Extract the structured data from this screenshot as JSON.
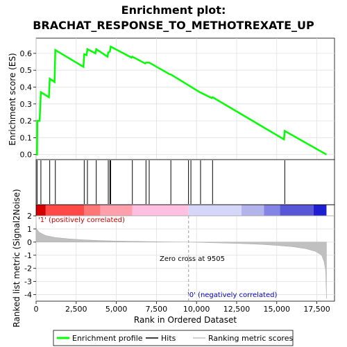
{
  "chart_data": {
    "type": "line",
    "title_line1": "Enrichment plot:",
    "title_line2": "BRACHAT_RESPONSE_TO_METHOTREXATE_UP",
    "top_panel": {
      "ylabel": "Enrichment score (ES)",
      "ylim": [
        -0.03,
        0.69
      ],
      "yticks": [
        0.0,
        0.1,
        0.2,
        0.3,
        0.4,
        0.5,
        0.6
      ],
      "ytick_labels": [
        "0.0",
        "0.1",
        "0.2",
        "0.3",
        "0.4",
        "0.5",
        "0.6"
      ],
      "series_color": "#00ff00",
      "es_points": [
        [
          0,
          0
        ],
        [
          60,
          0
        ],
        [
          80,
          0.2
        ],
        [
          220,
          0.2
        ],
        [
          300,
          0.37
        ],
        [
          800,
          0.34
        ],
        [
          850,
          0.45
        ],
        [
          1150,
          0.43
        ],
        [
          1200,
          0.62
        ],
        [
          2950,
          0.52
        ],
        [
          3000,
          0.595
        ],
        [
          3150,
          0.59
        ],
        [
          3200,
          0.625
        ],
        [
          3700,
          0.6
        ],
        [
          3750,
          0.625
        ],
        [
          4450,
          0.58
        ],
        [
          4500,
          0.605
        ],
        [
          4600,
          0.61
        ],
        [
          4650,
          0.64
        ],
        [
          5950,
          0.575
        ],
        [
          6000,
          0.58
        ],
        [
          6800,
          0.54
        ],
        [
          6850,
          0.545
        ],
        [
          7050,
          0.545
        ],
        [
          8350,
          0.475
        ],
        [
          8400,
          0.475
        ],
        [
          10200,
          0.37
        ],
        [
          10950,
          0.335
        ],
        [
          11000,
          0.34
        ],
        [
          15450,
          0.09
        ],
        [
          15500,
          0.14
        ],
        [
          18100,
          0
        ]
      ]
    },
    "hits": {
      "positions": [
        60,
        300,
        850,
        1200,
        3000,
        3200,
        3750,
        4500,
        4600,
        4650,
        6000,
        6850,
        7050,
        8400,
        9500,
        9650,
        10250,
        11000,
        15500
      ]
    },
    "colorbar": {
      "segments": [
        {
          "start": 0,
          "end": 600,
          "color": "#d40000"
        },
        {
          "start": 600,
          "end": 3000,
          "color": "#ff4848"
        },
        {
          "start": 3000,
          "end": 4000,
          "color": "#ff7676"
        },
        {
          "start": 4000,
          "end": 6000,
          "color": "#ff9fac"
        },
        {
          "start": 6000,
          "end": 9500,
          "color": "#ffbfe0"
        },
        {
          "start": 9500,
          "end": 12800,
          "color": "#d6d6f8"
        },
        {
          "start": 12800,
          "end": 14200,
          "color": "#b4b4ec"
        },
        {
          "start": 14200,
          "end": 15200,
          "color": "#8484e4"
        },
        {
          "start": 15200,
          "end": 17300,
          "color": "#5858d6"
        },
        {
          "start": 17300,
          "end": 18100,
          "color": "#1e1ed0"
        }
      ]
    },
    "bottom_panel": {
      "ylabel": "Ranked list metric (Signal2Noise)",
      "ylim": [
        -4.5,
        2.0
      ],
      "yticks": [
        2,
        1,
        0,
        -1,
        -2,
        -3,
        -4
      ],
      "ytick_labels": [
        "2",
        "1",
        "0",
        "-1",
        "-2",
        "-3",
        "-4"
      ],
      "metric_points": [
        [
          0,
          1.5
        ],
        [
          30,
          1.0
        ],
        [
          200,
          0.75
        ],
        [
          600,
          0.5
        ],
        [
          1200,
          0.35
        ],
        [
          2000,
          0.25
        ],
        [
          3000,
          0.17
        ],
        [
          4000,
          0.12
        ],
        [
          5000,
          0.08
        ],
        [
          6500,
          0.05
        ],
        [
          8000,
          0.02
        ],
        [
          9505,
          0
        ],
        [
          11000,
          -0.05
        ],
        [
          12500,
          -0.1
        ],
        [
          14000,
          -0.17
        ],
        [
          15000,
          -0.25
        ],
        [
          16000,
          -0.35
        ],
        [
          16800,
          -0.5
        ],
        [
          17400,
          -0.7
        ],
        [
          17800,
          -1.0
        ],
        [
          17950,
          -1.5
        ],
        [
          18050,
          -2.2
        ],
        [
          18100,
          -4.3
        ]
      ],
      "positive_label": "'1' (positively correlated)",
      "negative_label": "'0' (negatively correlated)",
      "zero_cross_label": "Zero cross at 9505",
      "zero_cross": 9505
    },
    "xaxis": {
      "xlabel": "Rank in Ordered Dataset",
      "xlim": [
        0,
        18600
      ],
      "xticks": [
        0,
        2500,
        5000,
        7500,
        10000,
        12500,
        15000,
        17500
      ],
      "xtick_labels": [
        "0",
        "2,500",
        "5,000",
        "7,500",
        "10,000",
        "12,500",
        "15,000",
        "17,500"
      ]
    },
    "legend": {
      "items": [
        {
          "label": "Enrichment profile",
          "color": "#00ff00"
        },
        {
          "label": "Hits",
          "color": "#000000"
        },
        {
          "label": "Ranking metric scores",
          "color": "#c0c0c0"
        }
      ]
    }
  }
}
